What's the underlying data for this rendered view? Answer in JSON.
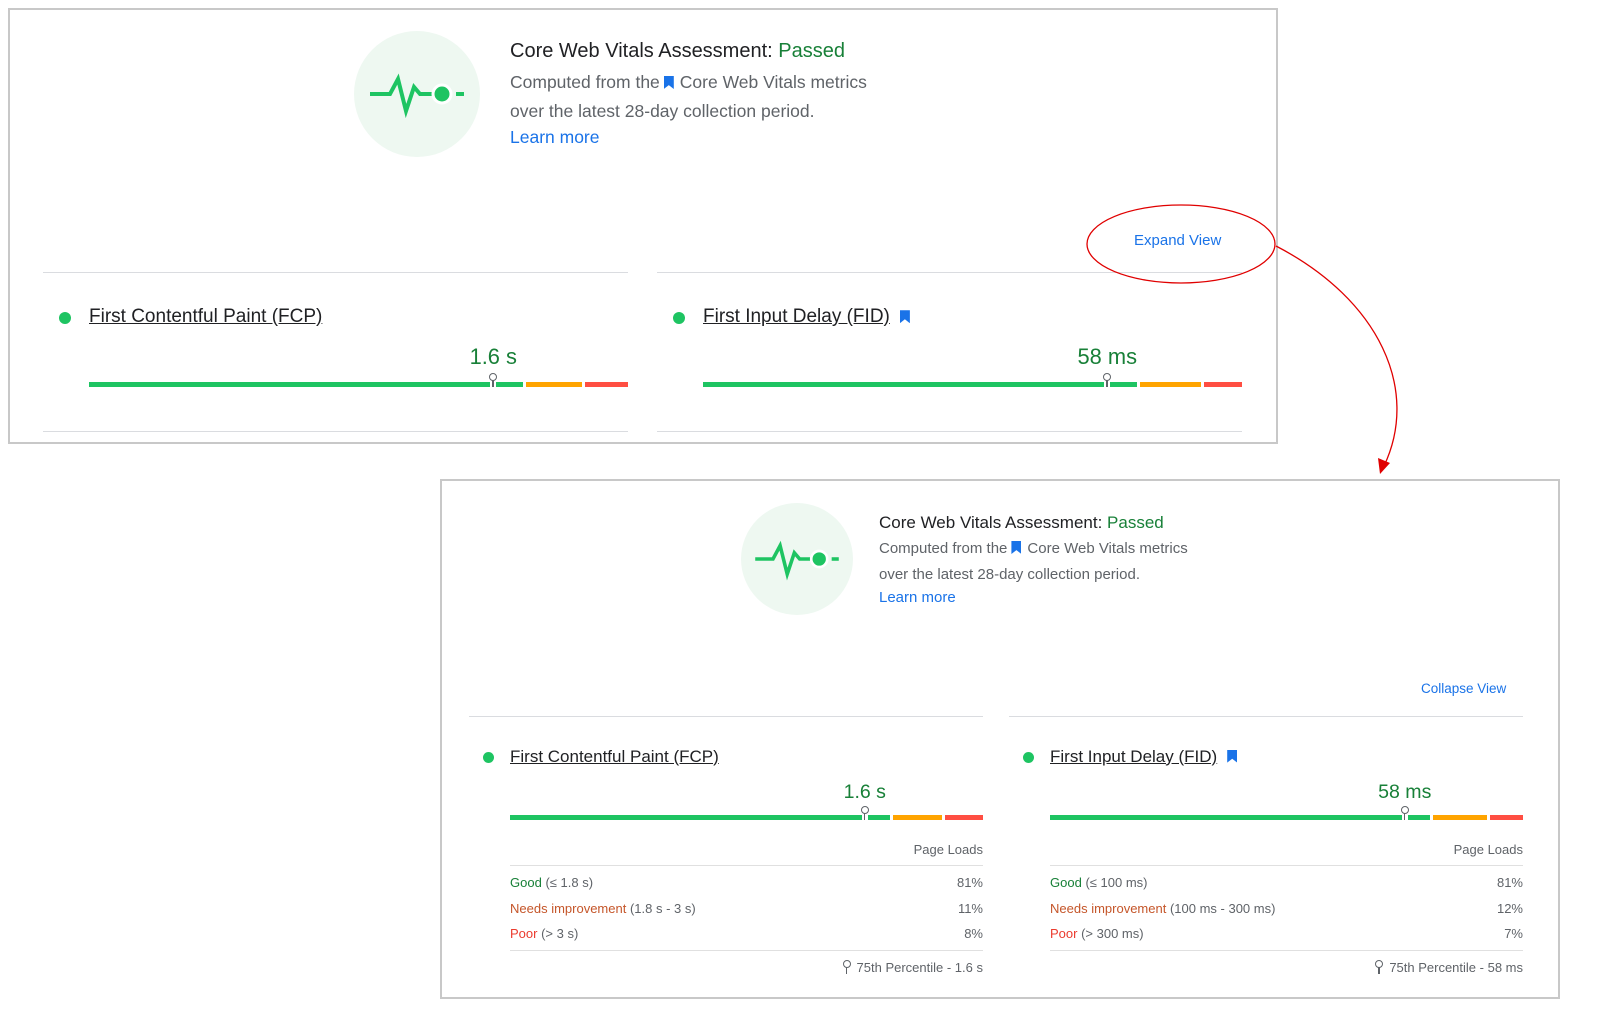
{
  "assessment": {
    "title": "Core Web Vitals Assessment:",
    "status": "Passed",
    "line1_a": "Computed from the",
    "line1_b": "Core Web Vitals metrics",
    "line2": "over the latest 28-day collection period.",
    "learn_more": "Learn more"
  },
  "top_panel": {
    "toggle": "Expand View"
  },
  "bottom_panel": {
    "toggle": "Collapse View"
  },
  "colors": {
    "good": "#1ec462",
    "needs_improvement": "#ffa400",
    "poor": "#ff4e42",
    "passed": "#188038",
    "link": "#1a73e8",
    "annotation": "#e00000"
  },
  "metrics": [
    {
      "name": "First Contentful Paint (FCP)",
      "value": "1.6 s",
      "bookmark": false,
      "percentile": 75,
      "distribution": {
        "good": 81,
        "needs_improvement": 11,
        "poor": 8
      },
      "page_loads": "Page Loads",
      "rows": [
        {
          "label": "Good",
          "range": "(≤ 1.8 s)",
          "pct": "81%"
        },
        {
          "label": "Needs improvement",
          "range": "(1.8 s - 3 s)",
          "pct": "11%"
        },
        {
          "label": "Poor",
          "range": "(> 3 s)",
          "pct": "8%"
        }
      ],
      "footer": "75th Percentile - 1.6 s"
    },
    {
      "name": "First Input Delay (FID)",
      "value": "58 ms",
      "bookmark": true,
      "percentile": 75,
      "distribution": {
        "good": 81,
        "needs_improvement": 12,
        "poor": 7
      },
      "page_loads": "Page Loads",
      "rows": [
        {
          "label": "Good",
          "range": "(≤ 100 ms)",
          "pct": "81%"
        },
        {
          "label": "Needs improvement",
          "range": "(100 ms - 300 ms)",
          "pct": "12%"
        },
        {
          "label": "Poor",
          "range": "(> 300 ms)",
          "pct": "7%"
        }
      ],
      "footer": "75th Percentile - 58 ms"
    }
  ]
}
